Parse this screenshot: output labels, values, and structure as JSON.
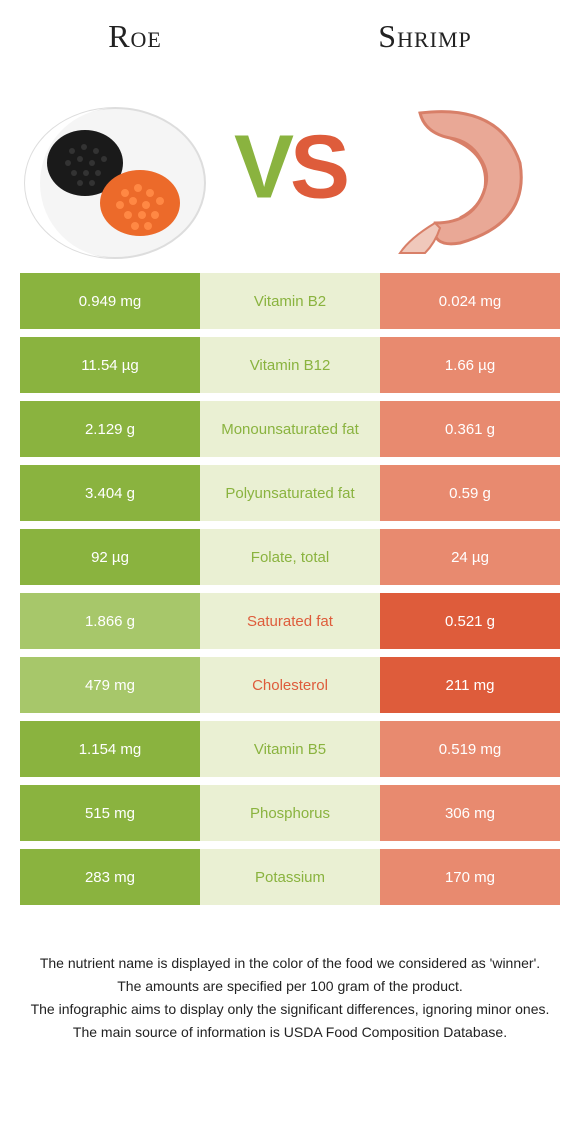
{
  "colors": {
    "left_strong": "#8ab33f",
    "left_weak": "#a7c76a",
    "mid_bg": "#eaf0d3",
    "right_strong": "#de5c3b",
    "right_weak": "#e88a6f",
    "text_green": "#8ab33f",
    "text_orange": "#de5c3b"
  },
  "header": {
    "left": "Roe",
    "right": "Shrimp",
    "vs_v": "V",
    "vs_s": "S"
  },
  "rows": [
    {
      "left": "0.949 mg",
      "nutrient": "Vitamin B2",
      "right": "0.024 mg",
      "winner": "left"
    },
    {
      "left": "11.54 µg",
      "nutrient": "Vitamin B12",
      "right": "1.66 µg",
      "winner": "left"
    },
    {
      "left": "2.129 g",
      "nutrient": "Monounsaturated fat",
      "right": "0.361 g",
      "winner": "left"
    },
    {
      "left": "3.404 g",
      "nutrient": "Polyunsaturated fat",
      "right": "0.59 g",
      "winner": "left"
    },
    {
      "left": "92 µg",
      "nutrient": "Folate, total",
      "right": "24 µg",
      "winner": "left"
    },
    {
      "left": "1.866 g",
      "nutrient": "Saturated fat",
      "right": "0.521 g",
      "winner": "right"
    },
    {
      "left": "479 mg",
      "nutrient": "Cholesterol",
      "right": "211 mg",
      "winner": "right"
    },
    {
      "left": "1.154 mg",
      "nutrient": "Vitamin B5",
      "right": "0.519 mg",
      "winner": "left"
    },
    {
      "left": "515 mg",
      "nutrient": "Phosphorus",
      "right": "306 mg",
      "winner": "left"
    },
    {
      "left": "283 mg",
      "nutrient": "Potassium",
      "right": "170 mg",
      "winner": "left"
    }
  ],
  "footer": {
    "l1": "The nutrient name is displayed in the color of the food we considered as 'winner'.",
    "l2": "The amounts are specified per 100 gram of the product.",
    "l3": "The infographic aims to display only the significant differences, ignoring minor ones.",
    "l4": "The main source of information is USDA Food Composition Database."
  }
}
